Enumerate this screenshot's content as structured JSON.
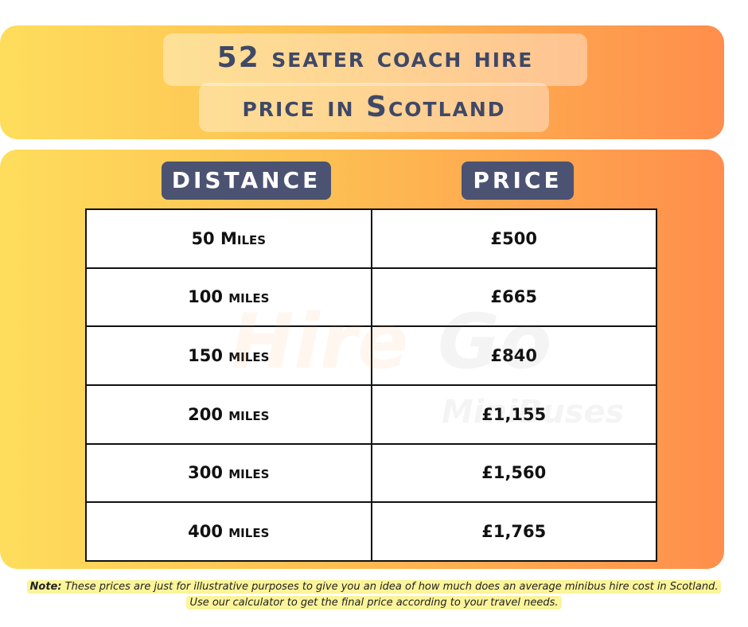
{
  "title": {
    "line1": "52 seater coach hire",
    "line2": "price in Scotland"
  },
  "headers": {
    "distance": "DISTANCE",
    "price": "PRICE"
  },
  "rows": [
    {
      "distance": "50 Miles",
      "price": "£500"
    },
    {
      "distance": "100 miles",
      "price": "£665"
    },
    {
      "distance": "150 miles",
      "price": "£840"
    },
    {
      "distance": "200 miles",
      "price": "£1,155"
    },
    {
      "distance": "300 miles",
      "price": "£1,560"
    },
    {
      "distance": "400 miles",
      "price": "£1,765"
    }
  ],
  "watermark": {
    "word1": "Hire",
    "word2": "Go",
    "word3": "MiniBuses"
  },
  "note": {
    "label": "Note:",
    "line1": " These prices are just for illustrative purposes to give you an idea of how much does an average minibus hire cost in Scotland.",
    "line2": "Use our calculator to get the final price according to your travel needs."
  },
  "colors": {
    "gradient_start": "#fedd5c",
    "gradient_end": "#ff8e4c",
    "header_pill": "#4b5272",
    "title_text": "#3f4866",
    "note_highlight": "#fbf49a"
  }
}
